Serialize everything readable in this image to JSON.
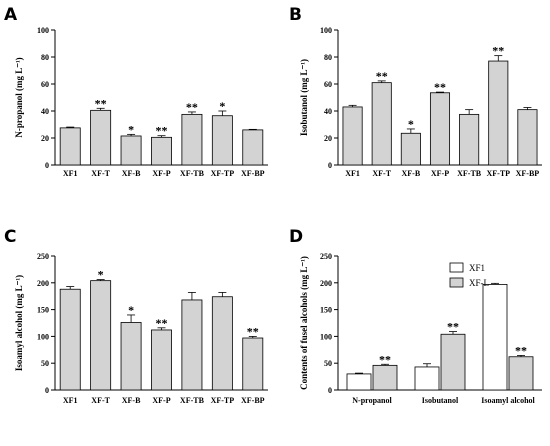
{
  "colors": {
    "bar": "#d3d3d3",
    "bar_white": "#ffffff",
    "stroke": "#000000"
  },
  "chart_data": [
    {
      "type": "bar",
      "panel": "A",
      "ylabel": "N-propanol (mg L⁻¹)",
      "ylim": [
        0,
        100
      ],
      "yticks": [
        0,
        20,
        40,
        60,
        80,
        100
      ],
      "categories": [
        "XF1",
        "XF-T",
        "XF-B",
        "XF-P",
        "XF-TB",
        "XF-TP",
        "XF-BP"
      ],
      "values": [
        27.5,
        40.5,
        21.5,
        20.5,
        37.5,
        36.5,
        26
      ],
      "errors": [
        0.6,
        1.5,
        1.2,
        1.2,
        1.8,
        3.5,
        0.4
      ],
      "significance": [
        "",
        "**",
        "*",
        "**",
        "**",
        "*",
        ""
      ]
    },
    {
      "type": "bar",
      "panel": "B",
      "ylabel": "Isobutanol (mg L⁻¹)",
      "ylim": [
        0,
        100
      ],
      "yticks": [
        0,
        20,
        40,
        60,
        80,
        100
      ],
      "categories": [
        "XF1",
        "XF-T",
        "XF-B",
        "XF-P",
        "XF-TB",
        "XF-TP",
        "XF-BP"
      ],
      "values": [
        43,
        61,
        23.5,
        53.5,
        37.5,
        77,
        41
      ],
      "errors": [
        1.2,
        1.3,
        3.2,
        0.5,
        3.5,
        4,
        1.6
      ],
      "significance": [
        "",
        "**",
        "*",
        "**",
        "",
        "**",
        ""
      ]
    },
    {
      "type": "bar",
      "panel": "C",
      "ylabel": "Isoamyl  alcohol (mg L⁻¹)",
      "ylim": [
        0,
        250
      ],
      "yticks": [
        0,
        50,
        100,
        150,
        200,
        250
      ],
      "categories": [
        "XF1",
        "XF-T",
        "XF-B",
        "XF-P",
        "XF-TB",
        "XF-TP",
        "XF-BP"
      ],
      "values": [
        188,
        204,
        126,
        112,
        168,
        174,
        97
      ],
      "errors": [
        5,
        2,
        14,
        4,
        14,
        8,
        3
      ],
      "significance": [
        "",
        "*",
        "*",
        "**",
        "",
        "",
        "**"
      ]
    },
    {
      "type": "bar",
      "panel": "D",
      "ylabel": "Contents of fusel alcohols (mg L⁻¹)",
      "ylim": [
        0,
        250
      ],
      "yticks": [
        0,
        50,
        100,
        150,
        200,
        250
      ],
      "categories": [
        "N-propanol",
        "Isobutanol",
        "Isoamyl alcohol"
      ],
      "legend_position": "top-right",
      "series": [
        {
          "name": "XF1",
          "values": [
            30,
            43,
            197
          ],
          "errors": [
            1.5,
            6,
            2
          ],
          "significance": [
            "",
            "",
            ""
          ]
        },
        {
          "name": "XF-L",
          "values": [
            46,
            104,
            62
          ],
          "errors": [
            2,
            5,
            2.5
          ],
          "significance": [
            "**",
            "**",
            "**"
          ]
        }
      ]
    }
  ]
}
